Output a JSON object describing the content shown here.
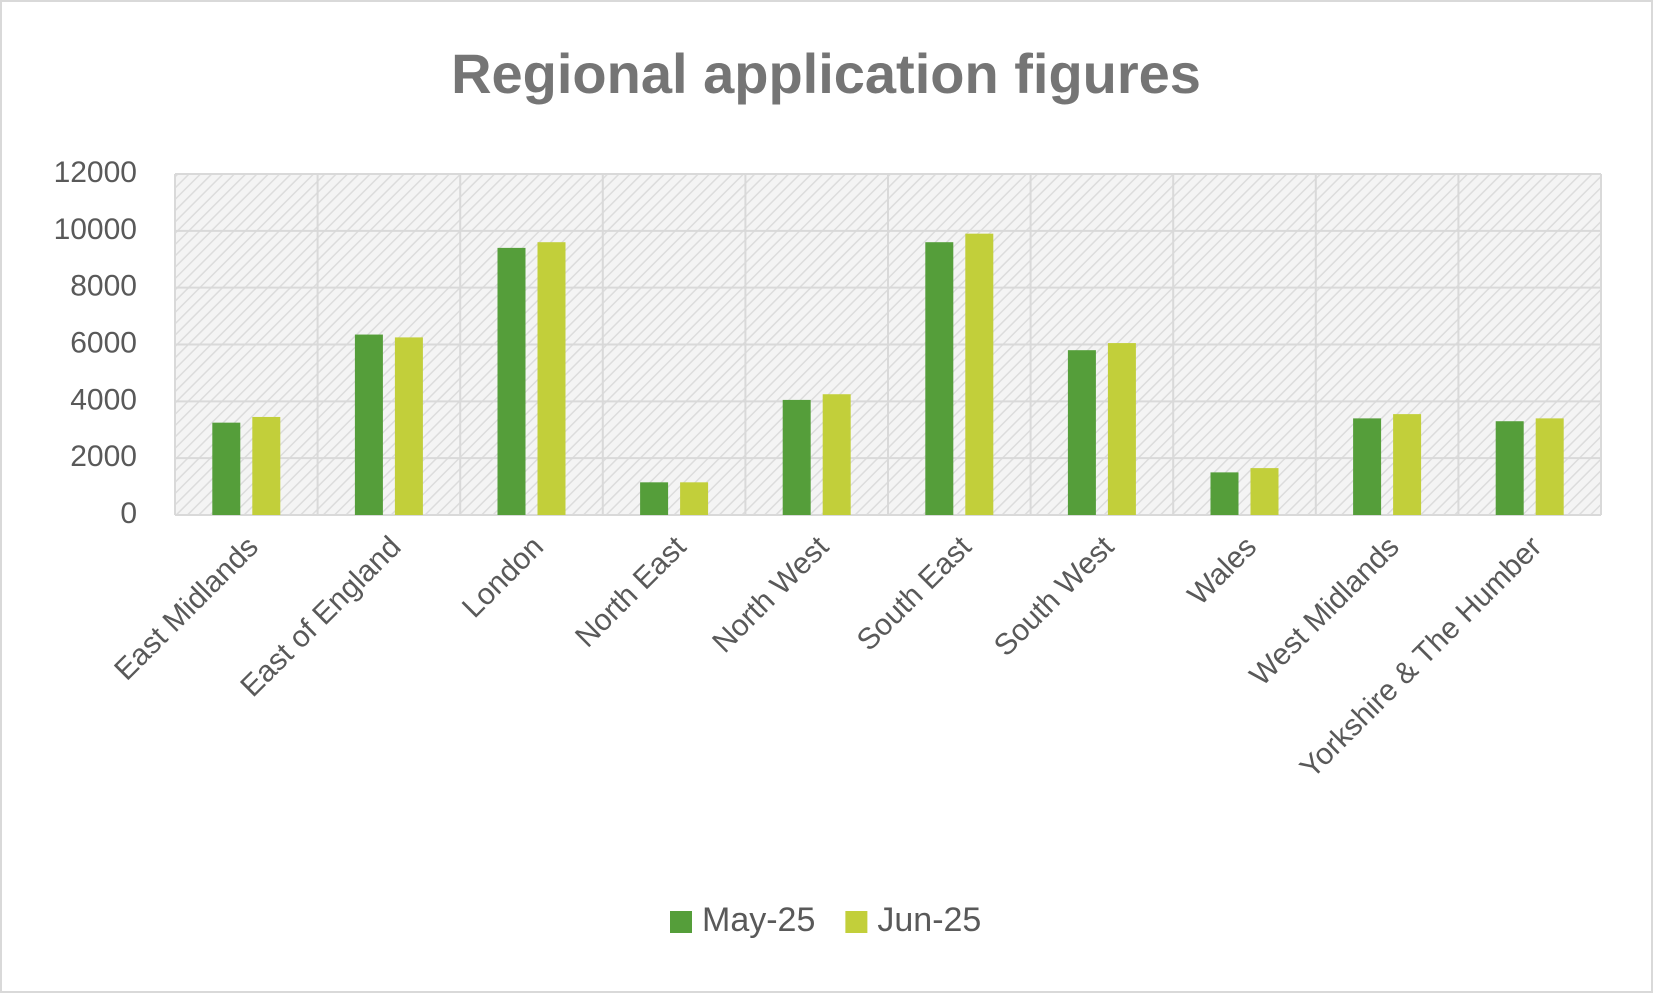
{
  "chart_data": {
    "type": "bar",
    "title": "Regional application figures",
    "categories": [
      "East Midlands",
      "East of England",
      "London",
      "North East",
      "North West",
      "South East",
      "South West",
      "Wales",
      "West Midlands",
      "Yorkshire & The Humber"
    ],
    "series": [
      {
        "name": "May-25",
        "color": "#559e3a",
        "values": [
          3250,
          6350,
          9400,
          1150,
          4050,
          9600,
          5800,
          1500,
          3400,
          3300
        ]
      },
      {
        "name": "Jun-25",
        "color": "#c2cf3a",
        "values": [
          3450,
          6250,
          9600,
          1150,
          4250,
          9900,
          6050,
          1650,
          3550,
          3400
        ]
      }
    ],
    "ylim": [
      0,
      12000
    ],
    "yticks": [
      0,
      2000,
      4000,
      6000,
      8000,
      10000,
      12000
    ],
    "grid": true,
    "legend": "bottom"
  }
}
